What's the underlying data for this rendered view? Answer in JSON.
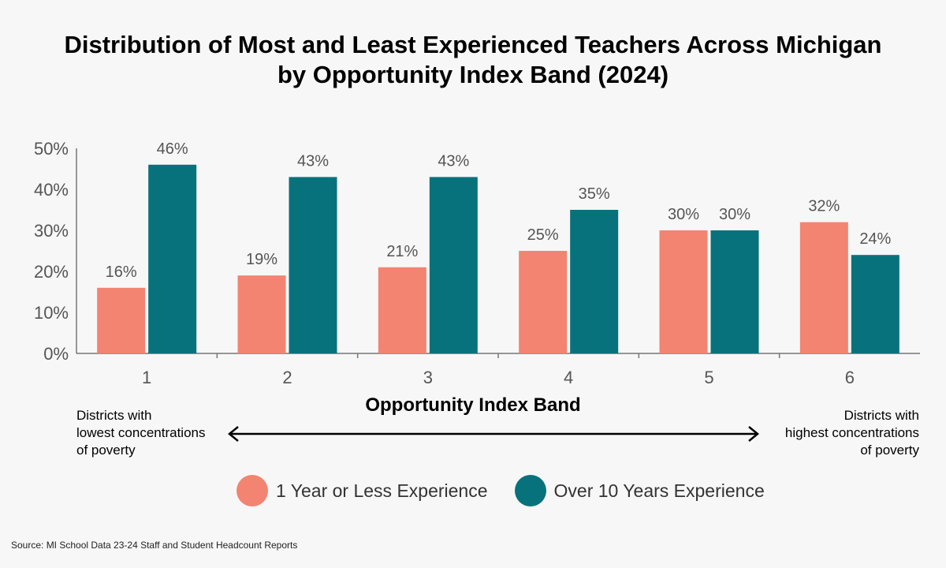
{
  "title_line1": "Distribution of Most and Least Experienced Teachers Across Michigan",
  "title_line2": "by Opportunity Index Band (2024)",
  "note_left": [
    "Districts with",
    "lowest concentrations",
    "of poverty"
  ],
  "note_right": [
    "Districts with",
    "highest concentrations",
    "of poverty"
  ],
  "source": "Source: MI School Data 23-24 Staff and Student Headcount Reports",
  "chart_data": {
    "type": "bar",
    "title": "Distribution of Most and Least Experienced Teachers Across Michigan by Opportunity Index Band (2024)",
    "xlabel": "Opportunity Index Band",
    "ylabel": "",
    "categories": [
      "1",
      "2",
      "3",
      "4",
      "5",
      "6"
    ],
    "ylim": [
      0,
      50
    ],
    "yticks": [
      0,
      10,
      20,
      30,
      40,
      50
    ],
    "ytick_labels": [
      "0%",
      "10%",
      "20%",
      "30%",
      "40%",
      "50%"
    ],
    "grid": false,
    "legend_position": "bottom",
    "series": [
      {
        "name": "1 Year or Less Experience",
        "color": "#f28471",
        "values": [
          16,
          19,
          21,
          25,
          30,
          32
        ],
        "labels": [
          "16%",
          "19%",
          "21%",
          "25%",
          "30%",
          "32%"
        ]
      },
      {
        "name": "Over 10 Years Experience",
        "color": "#07727c",
        "values": [
          46,
          43,
          43,
          35,
          30,
          24
        ],
        "labels": [
          "46%",
          "43%",
          "43%",
          "35%",
          "30%",
          "24%"
        ]
      }
    ]
  }
}
